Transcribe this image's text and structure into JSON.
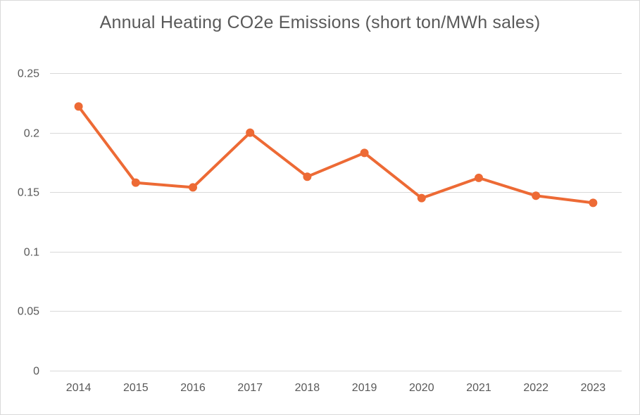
{
  "chart_data": {
    "type": "line",
    "title": "Annual Heating CO2e Emissions (short ton/MWh sales)",
    "xlabel": "",
    "ylabel": "",
    "categories": [
      "2014",
      "2015",
      "2016",
      "2017",
      "2018",
      "2019",
      "2020",
      "2021",
      "2022",
      "2023"
    ],
    "series": [
      {
        "values": [
          0.222,
          0.158,
          0.154,
          0.2,
          0.163,
          0.183,
          0.145,
          0.162,
          0.147,
          0.141
        ],
        "color": "#ed6a35"
      }
    ],
    "ylim": [
      0,
      0.25
    ],
    "yticks": [
      "0",
      "0.05",
      "0.1",
      "0.15",
      "0.2",
      "0.25"
    ],
    "grid": true,
    "legend": "none"
  }
}
